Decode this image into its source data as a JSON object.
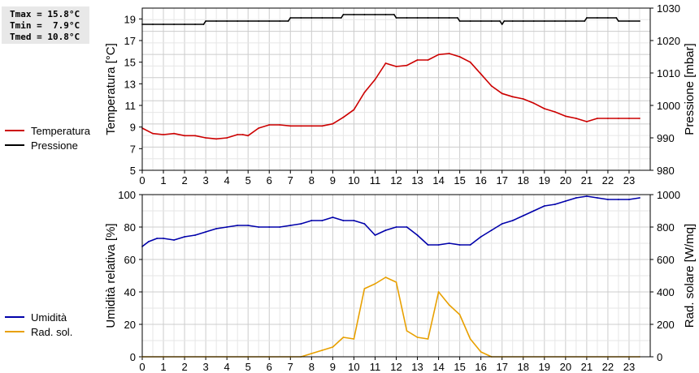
{
  "stats": {
    "tmax": "Tmax = 15.8°C",
    "tmin": "Tmin =  7.9°C",
    "tmed": "Tmed = 10.8°C"
  },
  "legend_top": [
    {
      "label": "Temperatura",
      "color": "#cc0000"
    },
    {
      "label": "Pressione",
      "color": "#000000"
    }
  ],
  "legend_bottom": [
    {
      "label": "Umidità",
      "color": "#0000aa"
    },
    {
      "label": "Rad. sol.",
      "color": "#e8a000"
    }
  ],
  "chart_data": [
    {
      "type": "line",
      "xticks": [
        "0",
        "1",
        "2",
        "3",
        "4",
        "5",
        "6",
        "7",
        "8",
        "9",
        "10",
        "11",
        "12",
        "13",
        "14",
        "15",
        "16",
        "17",
        "18",
        "19",
        "20",
        "21",
        "22",
        "23"
      ],
      "xlim": [
        0,
        24
      ],
      "ylabel": "Temperatura [°C]",
      "ylim": [
        5,
        20
      ],
      "yticks": [
        "5",
        "7",
        "9",
        "11",
        "13",
        "15",
        "17",
        "19"
      ],
      "y2label": "Pressione [mbar]",
      "y2lim": [
        980,
        1030
      ],
      "y2ticks": [
        "980",
        "990",
        "1000",
        "1010",
        "1020",
        "1030"
      ],
      "grid": true,
      "series": [
        {
          "name": "Temperatura",
          "axis": "y1",
          "color": "#cc0000",
          "x": [
            0,
            0.5,
            1,
            1.5,
            2,
            2.5,
            3,
            3.5,
            4,
            4.5,
            4.75,
            5,
            5.5,
            6,
            6.5,
            7,
            7.5,
            8,
            8.5,
            9,
            9.5,
            10,
            10.5,
            11,
            11.5,
            12,
            12.5,
            13,
            13.5,
            14,
            14.5,
            15,
            15.5,
            16,
            16.5,
            17,
            17.5,
            18,
            18.5,
            19,
            19.5,
            20,
            20.5,
            21,
            21.5,
            22,
            22.5,
            23,
            23.5
          ],
          "y": [
            8.9,
            8.4,
            8.3,
            8.4,
            8.2,
            8.2,
            8.0,
            7.9,
            8.0,
            8.3,
            8.3,
            8.2,
            8.9,
            9.2,
            9.2,
            9.1,
            9.1,
            9.1,
            9.1,
            9.3,
            9.9,
            10.6,
            12.2,
            13.4,
            14.9,
            14.6,
            14.7,
            15.2,
            15.2,
            15.7,
            15.8,
            15.5,
            15.0,
            13.9,
            12.8,
            12.1,
            11.8,
            11.6,
            11.2,
            10.7,
            10.4,
            10.0,
            9.8,
            9.5,
            9.8,
            9.8,
            9.8,
            9.8,
            9.8
          ]
        },
        {
          "name": "Pressione",
          "axis": "y2",
          "color": "#000000",
          "x": [
            0,
            0.5,
            1,
            1.5,
            2,
            2.5,
            2.9,
            3,
            3.5,
            4,
            4.5,
            5,
            5.5,
            6,
            6.5,
            6.9,
            7,
            7.5,
            8,
            8.5,
            9,
            9.4,
            9.5,
            10,
            10.5,
            11,
            11.5,
            11.9,
            12,
            12.5,
            13,
            13.5,
            14,
            14.5,
            14.9,
            15,
            15.5,
            16,
            16.5,
            16.9,
            17,
            17.1,
            17.5,
            18,
            18.5,
            19,
            19.5,
            20,
            20.5,
            20.9,
            21,
            21.5,
            22,
            22.4,
            22.5,
            23,
            23.5
          ],
          "y": [
            1025,
            1025,
            1025,
            1025,
            1025,
            1025,
            1025,
            1026,
            1026,
            1026,
            1026,
            1026,
            1026,
            1026,
            1026,
            1026,
            1027,
            1027,
            1027,
            1027,
            1027,
            1027,
            1028,
            1028,
            1028,
            1028,
            1028,
            1028,
            1027,
            1027,
            1027,
            1027,
            1027,
            1027,
            1027,
            1026,
            1026,
            1026,
            1026,
            1026,
            1025,
            1026,
            1026,
            1026,
            1026,
            1026,
            1026,
            1026,
            1026,
            1026,
            1027,
            1027,
            1027,
            1027,
            1026,
            1026,
            1026
          ]
        }
      ]
    },
    {
      "type": "line",
      "xticks": [
        "0",
        "1",
        "2",
        "3",
        "4",
        "5",
        "6",
        "7",
        "8",
        "9",
        "10",
        "11",
        "12",
        "13",
        "14",
        "15",
        "16",
        "17",
        "18",
        "19",
        "20",
        "21",
        "22",
        "23"
      ],
      "xlim": [
        0,
        24
      ],
      "ylabel": "Umidità relativa [%]",
      "ylim": [
        0,
        100
      ],
      "yticks": [
        "0",
        "20",
        "40",
        "60",
        "80",
        "100"
      ],
      "y2label": "Rad. solare [W/mq]",
      "y2lim": [
        0,
        1000
      ],
      "y2ticks": [
        "0",
        "200",
        "400",
        "600",
        "800",
        "1000"
      ],
      "grid": true,
      "series": [
        {
          "name": "Umidità",
          "axis": "y1",
          "color": "#0000aa",
          "x": [
            0,
            0.3,
            0.7,
            1,
            1.5,
            2,
            2.5,
            3,
            3.5,
            4,
            4.5,
            5,
            5.5,
            6,
            6.5,
            7,
            7.5,
            8,
            8.5,
            9,
            9.5,
            10,
            10.5,
            11,
            11.5,
            12,
            12.5,
            13,
            13.5,
            14,
            14.5,
            15,
            15.5,
            16,
            16.5,
            17,
            17.5,
            18,
            18.5,
            19,
            19.5,
            20,
            20.5,
            21,
            21.5,
            22,
            22.5,
            23,
            23.5
          ],
          "y": [
            68,
            71,
            73,
            73,
            72,
            74,
            75,
            77,
            79,
            80,
            81,
            81,
            80,
            80,
            80,
            81,
            82,
            84,
            84,
            86,
            84,
            84,
            82,
            75,
            78,
            80,
            80,
            75,
            69,
            69,
            70,
            69,
            69,
            74,
            78,
            82,
            84,
            87,
            90,
            93,
            94,
            96,
            98,
            99,
            98,
            97,
            97,
            97,
            98
          ]
        },
        {
          "name": "Rad. sol.",
          "axis": "y2",
          "color": "#e8a000",
          "x": [
            0,
            1,
            2,
            3,
            4,
            5,
            6,
            7,
            7.5,
            8,
            8.5,
            9,
            9.5,
            10,
            10.5,
            11,
            11.5,
            12,
            12.5,
            13,
            13.5,
            14,
            14.5,
            15,
            15.5,
            16,
            16.5,
            17,
            18,
            19,
            20,
            21,
            22,
            23,
            23.5
          ],
          "y": [
            0,
            0,
            0,
            0,
            0,
            0,
            0,
            0,
            0,
            20,
            40,
            60,
            120,
            110,
            420,
            450,
            490,
            460,
            160,
            120,
            110,
            400,
            320,
            260,
            110,
            30,
            0,
            0,
            0,
            0,
            0,
            0,
            0,
            0,
            0
          ]
        }
      ]
    }
  ]
}
